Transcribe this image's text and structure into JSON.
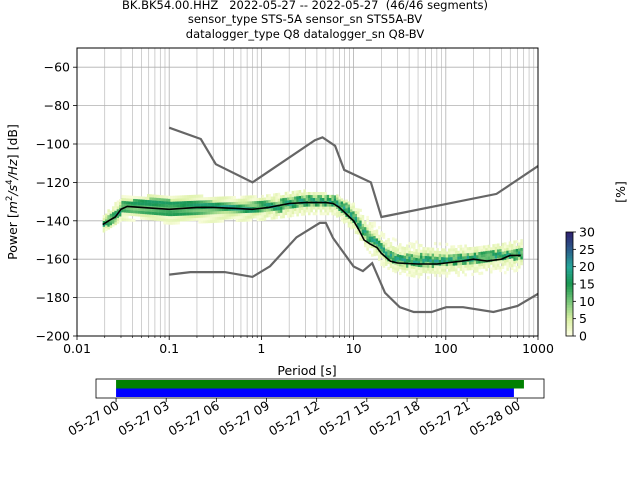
{
  "chart_data": [
    {
      "type": "heatmap",
      "title_lines": [
        "BK.BK54.00.HHZ   2022-05-27 -- 2022-05-27  (46/46 segments)",
        "sensor_type STS-5A sensor_sn STS5A-BV",
        "datalogger_type Q8 datalogger_sn Q8-BV"
      ],
      "xlabel": "Period [s]",
      "ylabel_parts": [
        "Power [",
        "m",
        "2",
        "/s",
        "4",
        "/Hz",
        "] [dB]"
      ],
      "xscale": "log",
      "xlim": [
        0.01,
        1000
      ],
      "ylim": [
        -200,
        -50
      ],
      "xticks": [
        0.01,
        0.1,
        1,
        10,
        100,
        1000
      ],
      "xtick_labels": [
        "0.01",
        "0.1",
        "1",
        "10",
        "100",
        "1000"
      ],
      "yticks": [
        -60,
        -80,
        -100,
        -120,
        -140,
        -160,
        -180,
        -200
      ],
      "ytick_labels": [
        "−60",
        "−80",
        "−100",
        "−120",
        "−140",
        "−160",
        "−180",
        "−200"
      ],
      "grid": true,
      "colorbar": {
        "label": "[%]",
        "range": [
          0,
          30
        ],
        "ticks": [
          0,
          5,
          10,
          15,
          20,
          25,
          30
        ],
        "tick_labels": [
          "0",
          "5",
          "10",
          "15",
          "20",
          "25",
          "30"
        ],
        "colors": [
          "#ffffe5",
          "#d9f0a3",
          "#78c679",
          "#1a9850",
          "#26a69a",
          "#2b5c8a",
          "#2d1e6e"
        ]
      },
      "noise_model_color": "#666666",
      "mean_color": "#000000",
      "high_noise_model": [
        [
          0.1,
          -91.5
        ],
        [
          0.22,
          -97.4
        ],
        [
          0.32,
          -110.5
        ],
        [
          0.8,
          -120
        ],
        [
          3.8,
          -98
        ],
        [
          4.6,
          -96.5
        ],
        [
          6.3,
          -101
        ],
        [
          7.9,
          -113.5
        ],
        [
          15.4,
          -120
        ],
        [
          20,
          -138
        ],
        [
          354.8,
          -126
        ],
        [
          1000,
          -111.5
        ]
      ],
      "low_noise_model": [
        [
          0.1,
          -168
        ],
        [
          0.17,
          -166.7
        ],
        [
          0.4,
          -166.7
        ],
        [
          0.8,
          -169.2
        ],
        [
          1.24,
          -163.7
        ],
        [
          2.4,
          -148.6
        ],
        [
          4.3,
          -141.1
        ],
        [
          5,
          -141.1
        ],
        [
          6,
          -149
        ],
        [
          10,
          -163.8
        ],
        [
          12.6,
          -166.2
        ],
        [
          15.9,
          -162.1
        ],
        [
          21.9,
          -177.5
        ],
        [
          31.6,
          -185
        ],
        [
          45,
          -187.5
        ],
        [
          70,
          -187.5
        ],
        [
          101,
          -185
        ],
        [
          154,
          -185
        ],
        [
          328,
          -187.5
        ],
        [
          600,
          -184.4
        ],
        [
          1000,
          -178
        ]
      ],
      "mean_curve": [
        [
          0.019,
          -142
        ],
        [
          0.022,
          -140
        ],
        [
          0.026,
          -138
        ],
        [
          0.03,
          -134
        ],
        [
          0.035,
          -132.5
        ],
        [
          0.05,
          -133
        ],
        [
          0.1,
          -134
        ],
        [
          0.2,
          -133
        ],
        [
          0.3,
          -133
        ],
        [
          0.5,
          -133.5
        ],
        [
          0.8,
          -134
        ],
        [
          1.2,
          -133
        ],
        [
          2,
          -131
        ],
        [
          3,
          -130.5
        ],
        [
          5,
          -130.5
        ],
        [
          6,
          -131
        ],
        [
          7,
          -133
        ],
        [
          9,
          -138
        ],
        [
          10,
          -140
        ],
        [
          11.5,
          -145
        ],
        [
          13,
          -150
        ],
        [
          15,
          -152
        ],
        [
          18,
          -154
        ],
        [
          20,
          -157
        ],
        [
          25,
          -161
        ],
        [
          30,
          -162
        ],
        [
          50,
          -162.5
        ],
        [
          80,
          -162.5
        ],
        [
          100,
          -162
        ],
        [
          150,
          -161
        ],
        [
          200,
          -160
        ],
        [
          280,
          -161
        ],
        [
          400,
          -160
        ],
        [
          500,
          -158
        ],
        [
          650,
          -158
        ]
      ],
      "psd_band": [
        [
          0.019,
          -144,
          -140
        ],
        [
          0.025,
          -142,
          -136
        ],
        [
          0.03,
          -137,
          -131
        ],
        [
          0.04,
          -136,
          -130
        ],
        [
          0.06,
          -137,
          -129
        ],
        [
          0.1,
          -138,
          -130
        ],
        [
          0.2,
          -138,
          -130
        ],
        [
          0.4,
          -137,
          -131
        ],
        [
          0.8,
          -137,
          -131
        ],
        [
          1.5,
          -136,
          -130
        ],
        [
          2.5,
          -134,
          -127
        ],
        [
          4,
          -133,
          -128
        ],
        [
          6,
          -134,
          -128
        ],
        [
          8,
          -139,
          -131
        ],
        [
          10,
          -143,
          -136
        ],
        [
          13,
          -150,
          -144
        ],
        [
          17,
          -155,
          -149
        ],
        [
          22,
          -161,
          -155
        ],
        [
          30,
          -164,
          -158
        ],
        [
          50,
          -165,
          -158
        ],
        [
          100,
          -164,
          -159
        ],
        [
          200,
          -163,
          -157
        ],
        [
          400,
          -161,
          -156
        ],
        [
          650,
          -161,
          -155
        ]
      ],
      "psd_spread": [
        [
          0.019,
          -146,
          -138
        ],
        [
          0.03,
          -140,
          -128
        ],
        [
          0.1,
          -142,
          -127
        ],
        [
          0.3,
          -141,
          -128
        ],
        [
          1,
          -140,
          -128
        ],
        [
          3,
          -137,
          -125
        ],
        [
          6,
          -137,
          -127
        ],
        [
          10,
          -146,
          -132
        ],
        [
          15,
          -158,
          -140
        ],
        [
          20,
          -164,
          -143
        ],
        [
          30,
          -168,
          -146
        ],
        [
          50,
          -170,
          -150
        ],
        [
          100,
          -171,
          -153
        ],
        [
          200,
          -170,
          -154
        ],
        [
          400,
          -168,
          -153
        ],
        [
          650,
          -166,
          -151
        ]
      ]
    },
    {
      "type": "timeline",
      "xtick_labels": [
        "05-27 00",
        "05-27 03",
        "05-27 06",
        "05-27 09",
        "05-27 12",
        "05-27 15",
        "05-27 18",
        "05-27 21",
        "05-28 00"
      ],
      "bars": [
        {
          "start_hours": 0,
          "end_hours": 24.4,
          "color": "#008000"
        },
        {
          "start_hours": 0,
          "end_hours": 23.8,
          "color": "#0000ff"
        }
      ],
      "xlim_hours": [
        -1.2,
        25.6
      ]
    }
  ]
}
